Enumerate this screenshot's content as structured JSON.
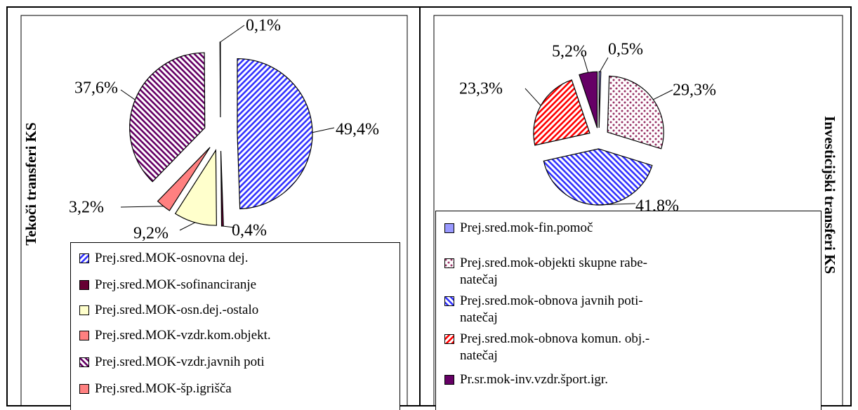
{
  "chart_data": [
    {
      "type": "pie",
      "title": "Tekoči transferi KS",
      "categories": [
        "Prej.sred.MOK-osnovna dej.",
        "Prej.sred.MOK-sofinanciranje",
        "Prej.sred.MOK-osn.dej.-ostalo",
        "Prej.sred.MOK-vzdr.kom.objekt.",
        "Prej.sred.MOK-vzdr.javnih poti",
        "Prej.sred.MOK-šp.igrišča"
      ],
      "values": [
        49.4,
        0.4,
        9.2,
        3.2,
        37.6,
        0.1
      ],
      "value_labels": [
        "49,4%",
        "0,4%",
        "9,2%",
        "3,2%",
        "37,6%",
        "0,1%"
      ],
      "colors": [
        "#3333ff",
        "#660033",
        "#ffffcc",
        "#ff8080",
        "#660066",
        "#ff8080"
      ],
      "hatches": [
        "forward",
        "none",
        "none",
        "none",
        "back",
        "none"
      ]
    },
    {
      "type": "pie",
      "title": "Investicijski transferi KS",
      "categories": [
        "Prej.sred.mok-fin.pomoč",
        "Prej.sred.mok-objekti skupne rabe-\nnatečaj",
        "Prej.sred.mok-obnova javnih poti-\nnatečaj",
        "Prej.sred.mok-obnova komun. obj.-\nnatečaj",
        "Pr.sr.mok-inv.vzdr.šport.igr."
      ],
      "values": [
        0.5,
        29.3,
        41.8,
        23.3,
        5.2
      ],
      "value_labels": [
        "0,5%",
        "29,3%",
        "41,8%",
        "23,3%",
        "5,2%"
      ],
      "colors": [
        "#9999ff",
        "#993366",
        "#3333ff",
        "#ff0000",
        "#660066"
      ],
      "hatches": [
        "none",
        "dots",
        "back",
        "forward",
        "none"
      ]
    }
  ]
}
